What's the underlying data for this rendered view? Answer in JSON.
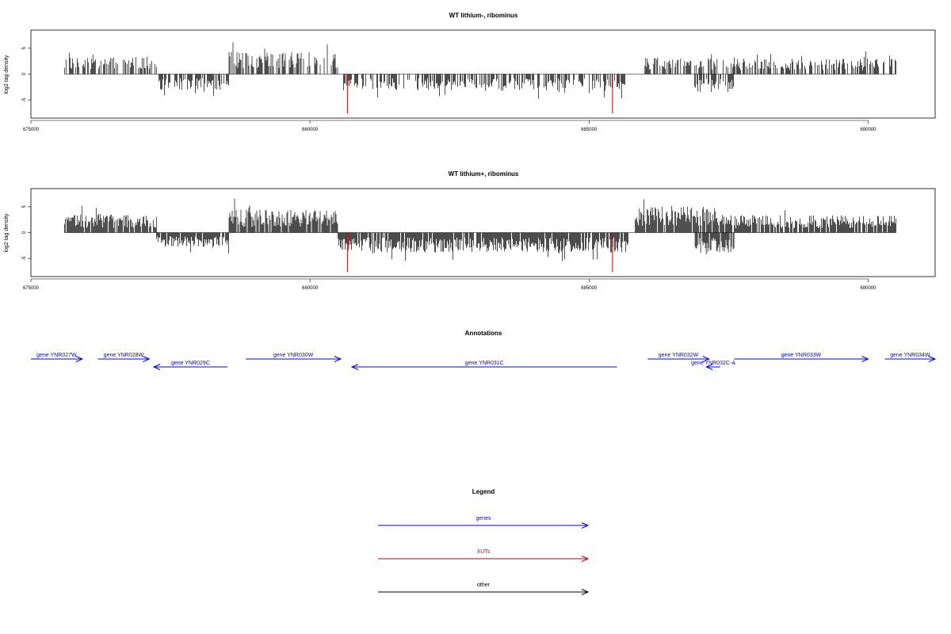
{
  "chart_data": [
    {
      "type": "bar",
      "title": "WT lithium-, ribominus",
      "xlabel": "",
      "ylabel": "log2 tag density",
      "xlim": [
        675000,
        691200
      ],
      "ylim": [
        -8.5,
        8.5
      ],
      "x_ticks": [
        675000,
        680000,
        685000,
        690000
      ],
      "x_tick_labels": [
        "675000",
        "680000",
        "685000",
        "690000"
      ],
      "y_ticks": [
        -5,
        0,
        5
      ],
      "y_tick_labels": [
        "-5",
        "0",
        "5"
      ],
      "grid": false,
      "density": 0.55,
      "max_abs": 6.5,
      "highlights": [
        {
          "x": 680670,
          "value": -7.6,
          "color": "#cc0000"
        },
        {
          "x": 685420,
          "value": -7.6,
          "color": "#cc0000"
        }
      ],
      "segments": [
        {
          "start": 675600,
          "end": 677250,
          "strand": "plus",
          "level": 2.8
        },
        {
          "start": 677250,
          "end": 678550,
          "strand": "minus",
          "level": 2.6
        },
        {
          "start": 678550,
          "end": 680500,
          "strand": "plus",
          "level": 3.6
        },
        {
          "start": 680600,
          "end": 685650,
          "strand": "minus",
          "level": 2.7
        },
        {
          "start": 686000,
          "end": 687300,
          "strand": "plus",
          "level": 2.7
        },
        {
          "start": 686850,
          "end": 687600,
          "strand": "minus",
          "level": 3.0
        },
        {
          "start": 687400,
          "end": 690500,
          "strand": "plus",
          "level": 2.5
        }
      ]
    },
    {
      "type": "bar",
      "title": "WT lithium+, ribominus",
      "xlabel": "",
      "ylabel": "log2 tag density",
      "xlim": [
        675000,
        691200
      ],
      "ylim": [
        -8.5,
        8.5
      ],
      "x_ticks": [
        675000,
        680000,
        685000,
        690000
      ],
      "x_tick_labels": [
        "675000",
        "680000",
        "685000",
        "690000"
      ],
      "y_ticks": [
        -5,
        0,
        5
      ],
      "y_tick_labels": [
        "-5",
        "0",
        "5"
      ],
      "grid": false,
      "density": 0.9,
      "max_abs": 7.5,
      "highlights": [
        {
          "x": 680670,
          "value": -7.6,
          "color": "#cc0000"
        },
        {
          "x": 685420,
          "value": -7.6,
          "color": "#cc0000"
        }
      ],
      "segments": [
        {
          "start": 675600,
          "end": 677250,
          "strand": "plus",
          "level": 3.0
        },
        {
          "start": 677250,
          "end": 678550,
          "strand": "minus",
          "level": 2.3
        },
        {
          "start": 678550,
          "end": 680500,
          "strand": "plus",
          "level": 3.7
        },
        {
          "start": 680500,
          "end": 685700,
          "strand": "minus",
          "level": 3.2
        },
        {
          "start": 685800,
          "end": 687400,
          "strand": "plus",
          "level": 4.2
        },
        {
          "start": 686900,
          "end": 687600,
          "strand": "minus",
          "level": 3.3
        },
        {
          "start": 687400,
          "end": 690500,
          "strand": "plus",
          "level": 2.8
        }
      ]
    }
  ],
  "annotations": {
    "title": "Annotations",
    "color": "#0000ff",
    "genes": [
      {
        "label": "gene YNR027W",
        "start": 675000,
        "end": 675920,
        "direction": "right",
        "row": 0
      },
      {
        "label": "gene YNR028W",
        "start": 676200,
        "end": 677120,
        "direction": "right",
        "row": 0
      },
      {
        "label": "gene YNR029C",
        "start": 677200,
        "end": 678520,
        "direction": "left",
        "row": 1
      },
      {
        "label": "gene YNR030W",
        "start": 678850,
        "end": 680550,
        "direction": "right",
        "row": 0
      },
      {
        "label": "gene YNR031C",
        "start": 680750,
        "end": 685500,
        "direction": "left",
        "row": 1
      },
      {
        "label": "gene YNR032W",
        "start": 686050,
        "end": 687150,
        "direction": "right",
        "row": 0
      },
      {
        "label": "gene YNR032C-A",
        "start": 687100,
        "end": 687350,
        "direction": "left",
        "row": 1
      },
      {
        "label": "gene YNR033W",
        "start": 687600,
        "end": 690000,
        "direction": "right",
        "row": 0
      },
      {
        "label": "gene YNR034W",
        "start": 690300,
        "end": 691200,
        "direction": "right",
        "row": 0
      }
    ]
  },
  "legend": {
    "title": "Legend",
    "items": [
      {
        "label": "genes",
        "color": "#0000ff"
      },
      {
        "label": "XUTs",
        "color": "#cc0000"
      },
      {
        "label": "other",
        "color": "#000000"
      }
    ]
  }
}
